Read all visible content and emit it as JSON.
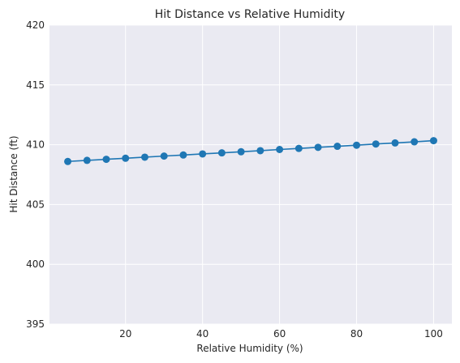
{
  "chart_data": {
    "type": "line",
    "title": "Hit Distance vs Relative Humidity",
    "xlabel": "Relative Humidity (%)",
    "ylabel": "Hit Distance (ft)",
    "xlim": [
      0.25,
      104.75
    ],
    "ylim": [
      395,
      420
    ],
    "xticks": [
      20,
      40,
      60,
      80,
      100
    ],
    "yticks": [
      395,
      400,
      405,
      410,
      415,
      420
    ],
    "grid": true,
    "markers": true,
    "series": [
      {
        "color": "#1f77b4",
        "x": [
          5,
          10,
          15,
          20,
          25,
          30,
          35,
          40,
          45,
          50,
          55,
          60,
          65,
          70,
          75,
          80,
          85,
          90,
          95,
          100
        ],
        "y": [
          408.6,
          408.69,
          408.78,
          408.87,
          408.96,
          409.05,
          409.14,
          409.23,
          409.32,
          409.41,
          409.5,
          409.6,
          409.69,
          409.78,
          409.87,
          409.96,
          410.06,
          410.15,
          410.24,
          410.34
        ]
      }
    ]
  }
}
